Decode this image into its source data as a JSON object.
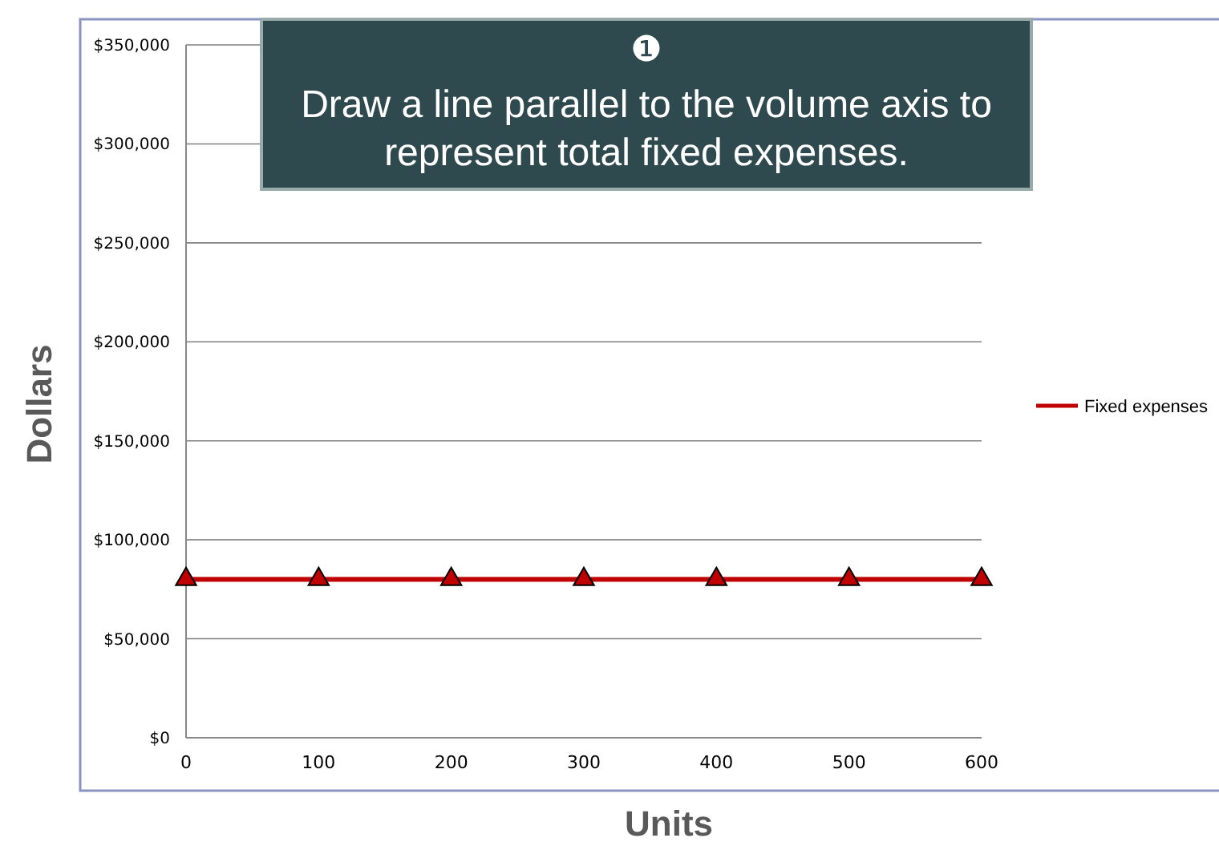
{
  "chart_data": {
    "type": "line",
    "xlabel": "Units",
    "ylabel": "Dollars",
    "x": [
      0,
      100,
      200,
      300,
      400,
      500,
      600
    ],
    "series": [
      {
        "name": "Fixed expenses",
        "color": "#c00000",
        "values": [
          80000,
          80000,
          80000,
          80000,
          80000,
          80000,
          80000
        ]
      }
    ],
    "xlim": [
      0,
      600
    ],
    "xticks": [
      0,
      100,
      200,
      300,
      400,
      500,
      600
    ],
    "ylim": [
      0,
      350000
    ],
    "yticks": [
      {
        "value": 0,
        "label": "$0"
      },
      {
        "value": 50000,
        "label": "$50,000"
      },
      {
        "value": 100000,
        "label": "$100,000"
      },
      {
        "value": 150000,
        "label": "$150,000"
      },
      {
        "value": 200000,
        "label": "$200,000"
      },
      {
        "value": 250000,
        "label": "$250,000"
      },
      {
        "value": 300000,
        "label": "$300,000"
      },
      {
        "value": 350000,
        "label": "$350,000"
      }
    ],
    "grid": "y",
    "legend": "right",
    "marker": "triangle",
    "line_style": "solid",
    "annotations": [
      "❶",
      "Draw a line parallel to the volume axis to represent total fixed expenses."
    ]
  }
}
